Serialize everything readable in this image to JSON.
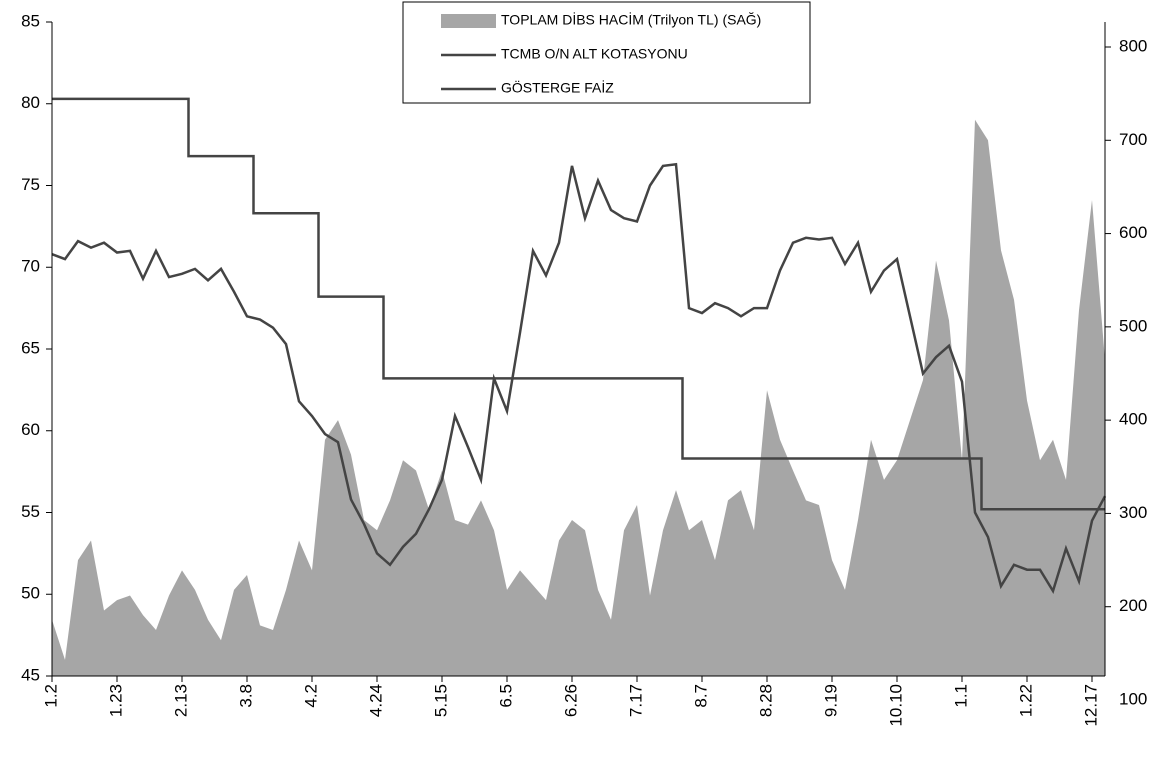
{
  "chart_data": {
    "type": "line",
    "categories": [
      "1.2",
      null,
      null,
      null,
      null,
      "1.23",
      null,
      null,
      null,
      null,
      "2.13",
      null,
      null,
      null,
      null,
      "3.8",
      null,
      null,
      null,
      null,
      "4.2",
      null,
      null,
      null,
      null,
      "4.24",
      null,
      null,
      null,
      null,
      "5.15",
      null,
      null,
      null,
      null,
      "6.5",
      null,
      null,
      null,
      null,
      "6.26",
      null,
      null,
      null,
      null,
      "7.17",
      null,
      null,
      null,
      null,
      "8.7",
      null,
      null,
      null,
      null,
      "8.28",
      null,
      null,
      null,
      null,
      "9.19",
      null,
      null,
      null,
      null,
      "10.10",
      null,
      null,
      null,
      null,
      "1.1",
      null,
      null,
      null,
      null,
      "1.22",
      null,
      null,
      null,
      null,
      "12.17",
      null
    ],
    "series": [
      {
        "name": "TOPLAM DİBS HACİM (Trilyon TL) (SAĞ)",
        "type": "area",
        "axis": "y2",
        "color": "#a6a6a6",
        "values": [
          186,
          143,
          250,
          271,
          196,
          207,
          212,
          191,
          175,
          212,
          239,
          218,
          186,
          164,
          218,
          234,
          180,
          175,
          218,
          271,
          239,
          379,
          400,
          363,
          293,
          282,
          314,
          357,
          346,
          304,
          346,
          293,
          288,
          314,
          282,
          218,
          239,
          223,
          207,
          271,
          293,
          282,
          218,
          186,
          282,
          309,
          212,
          282,
          325,
          282,
          293,
          250,
          314,
          325,
          282,
          432,
          379,
          346,
          314,
          309,
          250,
          218,
          293,
          379,
          336,
          357,
          400,
          443,
          571,
          507,
          357,
          722,
          700,
          582,
          529,
          421,
          357,
          379,
          336,
          518,
          636,
          464
        ]
      },
      {
        "name": "TCMB O/N ALT KOTASYONU",
        "type": "step",
        "color": "#444444",
        "values": [
          80.3,
          80.3,
          80.3,
          80.3,
          80.3,
          80.3,
          80.3,
          80.3,
          80.3,
          80.3,
          80.3,
          76.8,
          76.8,
          76.8,
          76.8,
          76.8,
          73.3,
          73.3,
          73.3,
          73.3,
          73.3,
          68.2,
          68.2,
          68.2,
          68.2,
          68.2,
          63.2,
          63.2,
          63.2,
          63.2,
          63.2,
          63.2,
          63.2,
          63.2,
          63.2,
          63.2,
          63.2,
          63.2,
          63.2,
          63.2,
          63.2,
          63.2,
          63.2,
          63.2,
          63.2,
          63.2,
          63.2,
          63.2,
          63.2,
          58.3,
          58.3,
          58.3,
          58.3,
          58.3,
          58.3,
          58.3,
          58.3,
          58.3,
          58.3,
          58.3,
          58.3,
          58.3,
          58.3,
          58.3,
          58.3,
          58.3,
          58.3,
          58.3,
          58.3,
          58.3,
          58.3,
          58.3,
          55.2,
          55.2,
          55.2,
          55.2,
          55.2,
          55.2,
          55.2,
          55.2,
          55.2,
          55.2
        ]
      },
      {
        "name": "GÖSTERGE FAİZ",
        "type": "line",
        "color": "#444444",
        "values": [
          70.8,
          70.5,
          71.6,
          71.2,
          71.5,
          70.9,
          71.0,
          69.3,
          71.0,
          69.4,
          69.6,
          69.9,
          69.2,
          69.9,
          68.5,
          67.0,
          66.8,
          66.3,
          65.3,
          61.8,
          60.9,
          59.8,
          59.3,
          55.8,
          54.3,
          52.5,
          51.8,
          52.9,
          53.7,
          55.2,
          57.0,
          60.9,
          59.0,
          57.0,
          63.2,
          61.2,
          66.0,
          71.0,
          69.5,
          71.5,
          76.2,
          73.0,
          75.3,
          73.5,
          73.0,
          72.8,
          75.0,
          76.2,
          76.3,
          67.5,
          67.2,
          67.8,
          67.5,
          67.0,
          67.5,
          67.5,
          69.8,
          71.5,
          71.8,
          71.7,
          71.8,
          70.2,
          71.5,
          68.5,
          69.8,
          70.5,
          67.0,
          63.5,
          64.5,
          65.2,
          63.0,
          55.0,
          53.5,
          50.5,
          51.8,
          51.5,
          51.5,
          50.2,
          52.8,
          50.8,
          54.5,
          56.0
        ]
      }
    ],
    "ylim": [
      45,
      85
    ],
    "yticks": [
      45,
      50,
      55,
      60,
      65,
      70,
      75,
      80,
      85
    ],
    "y2lim": [
      100,
      800
    ],
    "y2ticks": [
      100,
      200,
      300,
      400,
      500,
      600,
      700,
      800
    ],
    "grid": false,
    "legend": "top"
  }
}
